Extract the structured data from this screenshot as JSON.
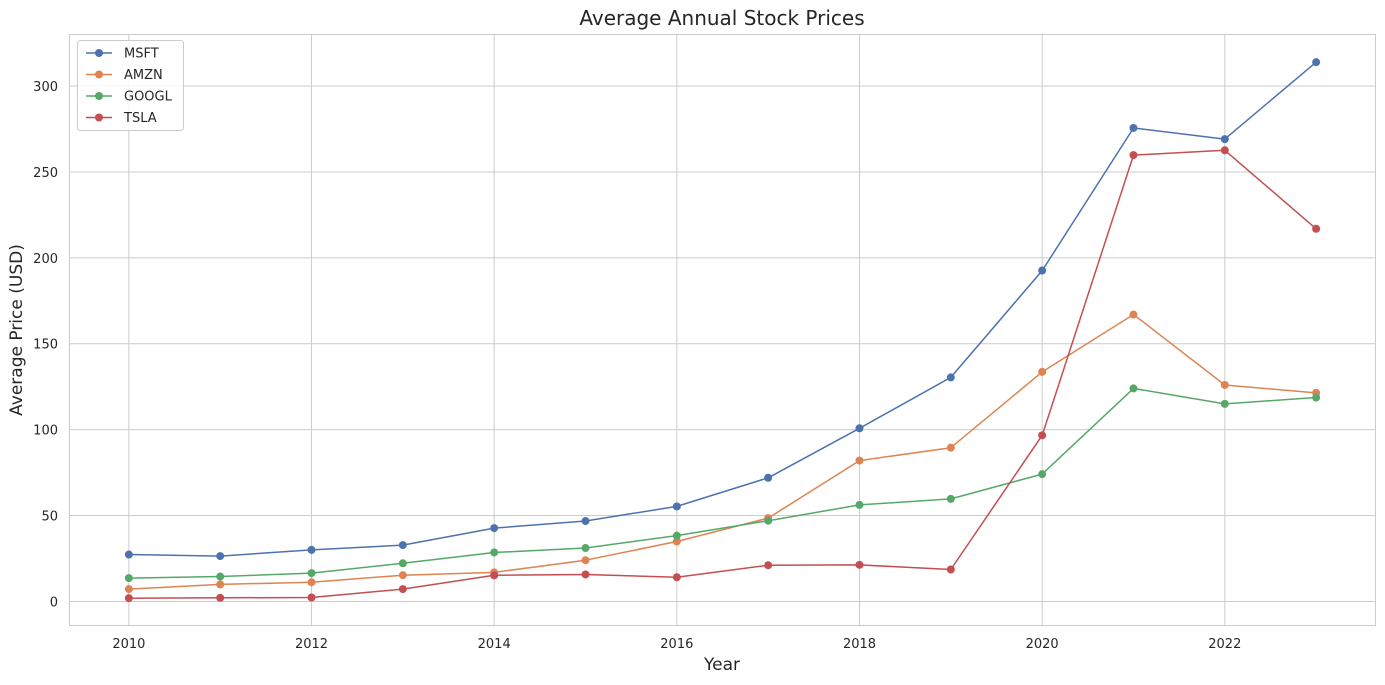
{
  "chart_data": {
    "type": "line",
    "title": "Average Annual Stock Prices",
    "xlabel": "Year",
    "ylabel": "Average Price (USD)",
    "xlim": [
      2009.35,
      2023.65
    ],
    "ylim": [
      -14,
      330
    ],
    "x_ticks": [
      2010,
      2012,
      2014,
      2016,
      2018,
      2020,
      2022
    ],
    "y_ticks": [
      0,
      50,
      100,
      150,
      200,
      250,
      300
    ],
    "grid": true,
    "legend_position": "top-left",
    "x": [
      2010,
      2011,
      2012,
      2013,
      2014,
      2015,
      2016,
      2017,
      2018,
      2019,
      2020,
      2021,
      2022,
      2023
    ],
    "series": [
      {
        "name": "MSFT",
        "color": "#4c72b0",
        "values": [
          27.3,
          26.4,
          30.0,
          32.8,
          42.7,
          46.8,
          55.3,
          72.0,
          100.8,
          130.4,
          192.6,
          275.6,
          269.1,
          313.9
        ]
      },
      {
        "name": "AMZN",
        "color": "#dd8452",
        "values": [
          7.2,
          9.9,
          11.2,
          15.3,
          16.9,
          24.0,
          34.9,
          48.5,
          82.0,
          89.5,
          133.6,
          167.0,
          126.0,
          121.4
        ]
      },
      {
        "name": "GOOGL",
        "color": "#55a868",
        "values": [
          13.6,
          14.5,
          16.5,
          22.2,
          28.5,
          31.1,
          38.3,
          47.0,
          56.2,
          59.7,
          74.1,
          124.0,
          115.0,
          118.7
        ]
      },
      {
        "name": "TSLA",
        "color": "#c44e52",
        "values": [
          1.9,
          2.1,
          2.3,
          7.2,
          15.2,
          15.7,
          14.1,
          21.1,
          21.3,
          18.6,
          96.7,
          259.8,
          262.6,
          216.9
        ]
      }
    ]
  }
}
